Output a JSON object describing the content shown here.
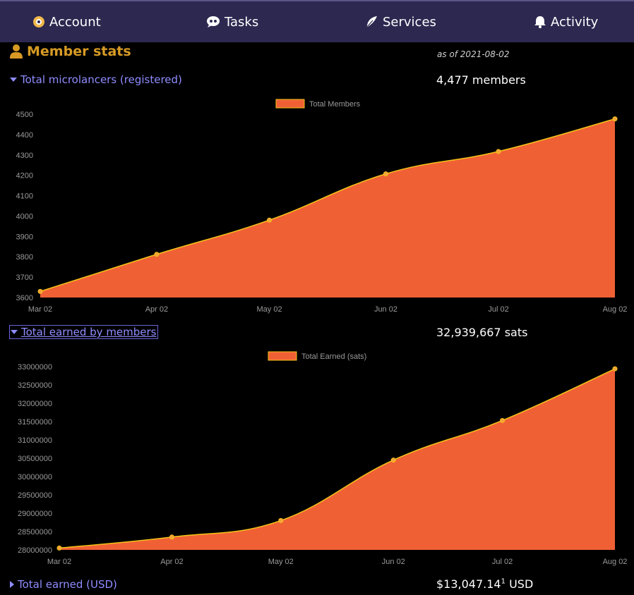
{
  "nav": {
    "items": [
      {
        "label": "Account",
        "icon": "account-icon"
      },
      {
        "label": "Tasks",
        "icon": "tasks-icon"
      },
      {
        "label": "Services",
        "icon": "feather-icon"
      },
      {
        "label": "Activity",
        "icon": "bell-icon"
      }
    ]
  },
  "section": {
    "title": "Member stats",
    "as_of": "as of 2021-08-02"
  },
  "stats": {
    "members": {
      "label": "Total microlancers (registered)",
      "value": "4,477 members"
    },
    "earned": {
      "label": "Total earned by members",
      "value": "32,939,667 sats"
    },
    "usd": {
      "label": "Total earned (USD)",
      "value": "$13,047.14",
      "footnote": "1",
      "unit": "USD"
    }
  },
  "colors": {
    "fill": "#f06035",
    "line": "#f5c518",
    "accent": "#d69a24",
    "link": "#8f8cff",
    "nav_bg": "#2c2850"
  },
  "chart_data": [
    {
      "type": "area",
      "legend": "Total Members",
      "legend_position": "top-center",
      "x": [
        "Mar 02",
        "Apr 02",
        "May 02",
        "Jun 02",
        "Jul 02",
        "Aug 02"
      ],
      "points": [
        {
          "x": "2021-03-02",
          "y": 3630
        },
        {
          "x": "2021-04-02",
          "y": 3812
        },
        {
          "x": "2021-05-02",
          "y": 3980
        },
        {
          "x": "2021-06-02",
          "y": 4207
        },
        {
          "x": "2021-07-02",
          "y": 4317
        },
        {
          "x": "2021-08-02",
          "y": 4477
        }
      ],
      "y_ticks": [
        "3600",
        "3700",
        "3800",
        "3900",
        "4000",
        "4100",
        "4200",
        "4300",
        "4400",
        "4500"
      ],
      "ylim": [
        3600,
        4500
      ]
    },
    {
      "type": "area",
      "legend": "Total Earned (sats)",
      "legend_position": "top-center",
      "x": [
        "Mar 02",
        "Apr 02",
        "May 02",
        "Jun 02",
        "Jul 02",
        "Aug 02"
      ],
      "points": [
        {
          "x": "2021-03-02",
          "y": 28050000
        },
        {
          "x": "2021-04-02",
          "y": 28350000
        },
        {
          "x": "2021-05-02",
          "y": 28800000
        },
        {
          "x": "2021-06-02",
          "y": 30450000
        },
        {
          "x": "2021-07-02",
          "y": 31530000
        },
        {
          "x": "2021-08-02",
          "y": 32939667
        }
      ],
      "y_ticks": [
        "28000000",
        "28500000",
        "29000000",
        "29500000",
        "30000000",
        "30500000",
        "31000000",
        "31500000",
        "32000000",
        "32500000",
        "33000000"
      ],
      "ylim": [
        28000000,
        33000000
      ]
    }
  ]
}
